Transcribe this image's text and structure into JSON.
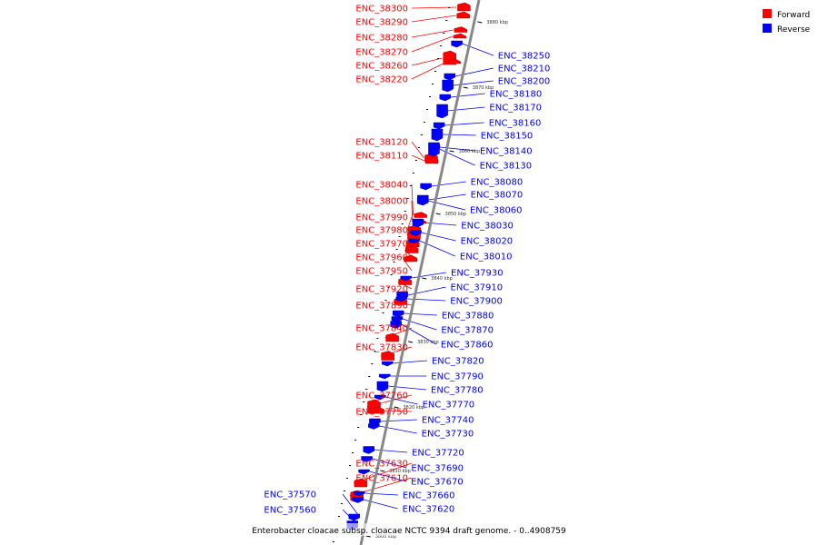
{
  "colors": {
    "forward": "#ff0000",
    "reverse": "#0000ff",
    "axis": "#888888",
    "bg": "#ffffff"
  },
  "legend": {
    "forward": "Forward",
    "reverse": "Reverse"
  },
  "caption": "Enterobacter cloacae subsp. cloacae NCTC 9394 draft genome. - 0..4908759",
  "ticks": [
    "3880 kbp",
    "3870 kbp",
    "3860 kbp",
    "3850 kbp",
    "3840 kbp",
    "3830 kbp",
    "3820 kbp",
    "3810 kbp",
    "3800 kbp"
  ],
  "forward_genes": [
    "ENC_38300",
    "ENC_38290",
    "ENC_38280",
    "ENC_38270",
    "ENC_38260",
    "ENC_38220",
    "ENC_38120",
    "ENC_38110",
    "ENC_38040",
    "ENC_38000",
    "ENC_37990",
    "ENC_37980",
    "ENC_37970",
    "ENC_37960",
    "ENC_37950",
    "ENC_37920",
    "ENC_37890",
    "ENC_37840",
    "ENC_37830",
    "ENC_37760",
    "ENC_37750",
    "ENC_37630",
    "ENC_37610"
  ],
  "reverse_genes": [
    "ENC_38250",
    "ENC_38210",
    "ENC_38200",
    "ENC_38180",
    "ENC_38170",
    "ENC_38160",
    "ENC_38150",
    "ENC_38140",
    "ENC_38130",
    "ENC_38080",
    "ENC_38070",
    "ENC_38060",
    "ENC_38030",
    "ENC_38020",
    "ENC_38010",
    "ENC_37930",
    "ENC_37910",
    "ENC_37900",
    "ENC_37880",
    "ENC_37870",
    "ENC_37860",
    "ENC_37820",
    "ENC_37790",
    "ENC_37780",
    "ENC_37770",
    "ENC_37740",
    "ENC_37730",
    "ENC_37720",
    "ENC_37690",
    "ENC_37670",
    "ENC_37660",
    "ENC_37620",
    "ENC_37570",
    "ENC_37560"
  ]
}
